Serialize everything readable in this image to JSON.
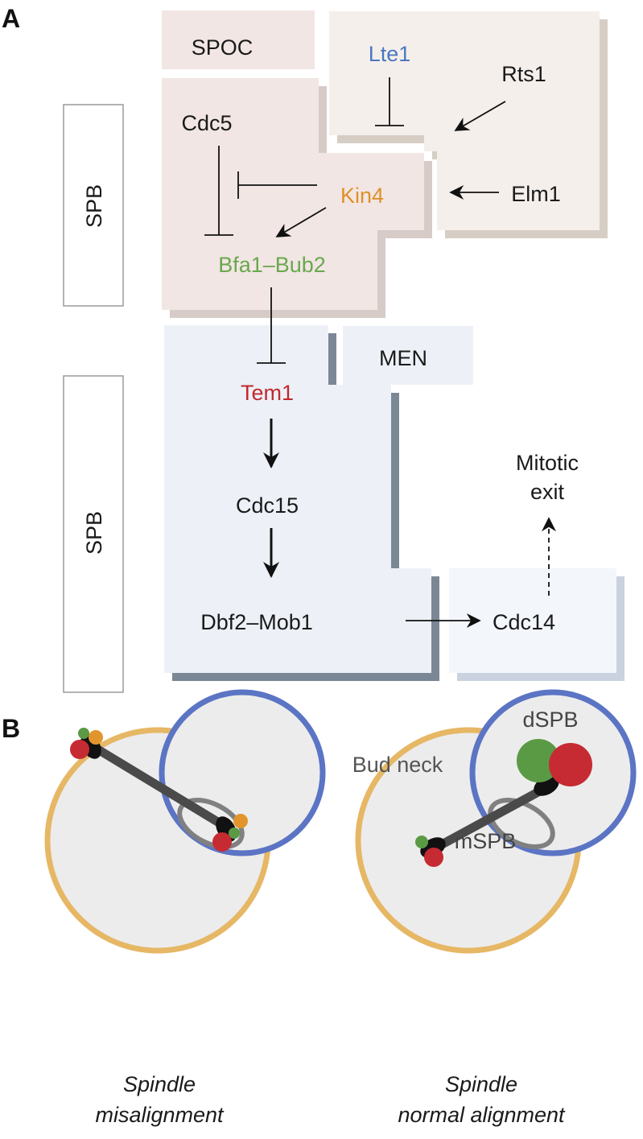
{
  "panels": {
    "a": "A",
    "b": "B"
  },
  "panel_a": {
    "spb_top": "SPB",
    "spb_bottom": "SPB",
    "spoc": "SPOC",
    "men": "MEN",
    "lte1": "Lte1",
    "rts1": "Rts1",
    "elm1": "Elm1",
    "cdc5": "Cdc5",
    "kin4": "Kin4",
    "bfa1_bub2": "Bfa1–Bub2",
    "tem1": "Tem1",
    "cdc15": "Cdc15",
    "dbf2_mob1": "Dbf2–Mob1",
    "cdc14": "Cdc14",
    "mitotic_exit_line1": "Mitotic",
    "mitotic_exit_line2": "exit"
  },
  "panel_b": {
    "bud_neck": "Bud neck",
    "dspb": "dSPB",
    "mspb": "mSPB",
    "left_caption_line1": "Spindle",
    "left_caption_line2": "misalignment",
    "right_caption_line1": "Spindle",
    "right_caption_line2": "normal alignment"
  },
  "colors": {
    "spoc_fill": "#f1e6e3",
    "upstream_fill": "#f5efeb",
    "men_fill": "#edf1f7",
    "cdc14_fill": "#f3f6fb",
    "lte1": "#4a78c2",
    "kin4": "#e0902a",
    "bfa1_bub2": "#6aa84f",
    "tem1": "#c0292f",
    "mother_cell": "#e6b765",
    "bud_cell": "#5b74c4",
    "spb_green": "#5a9a44",
    "spb_red": "#c62a32",
    "spb_orange": "#e2952c"
  }
}
